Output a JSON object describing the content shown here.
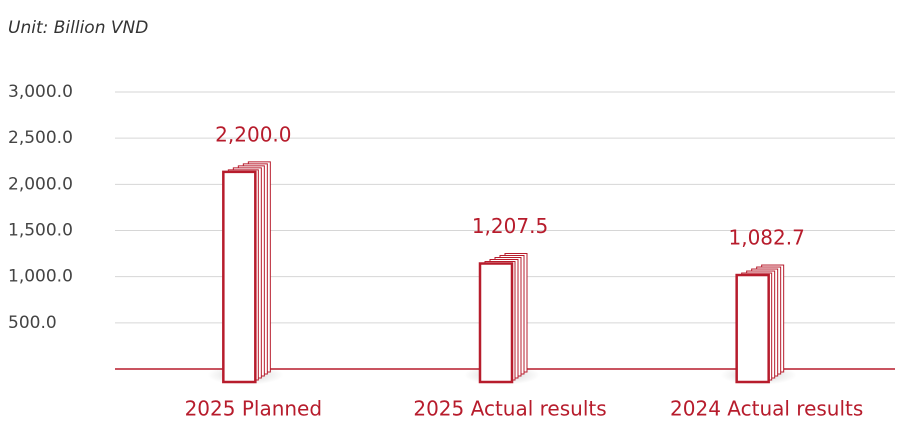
{
  "chart_data": {
    "type": "bar",
    "subtitle": "Unit: Billion VND",
    "categories": [
      "2025 Planned",
      "2025 Actual results",
      "2024 Actual results"
    ],
    "values": [
      2200,
      1207.5,
      1082.7
    ],
    "value_labels": [
      "2,200.0",
      "1,207.5",
      "1,082.7"
    ],
    "color": "#b71c2c",
    "ylim": [
      0,
      3000
    ],
    "yticks": [
      {
        "value": 500,
        "label": "500.0"
      },
      {
        "value": 1000,
        "label": "1,000.0"
      },
      {
        "value": 1500,
        "label": "1,500.0"
      },
      {
        "value": 2000,
        "label": "2,000.0"
      },
      {
        "value": 2500,
        "label": "2,500.0"
      },
      {
        "value": 3000,
        "label": "3,000.0"
      }
    ],
    "grid": true
  }
}
